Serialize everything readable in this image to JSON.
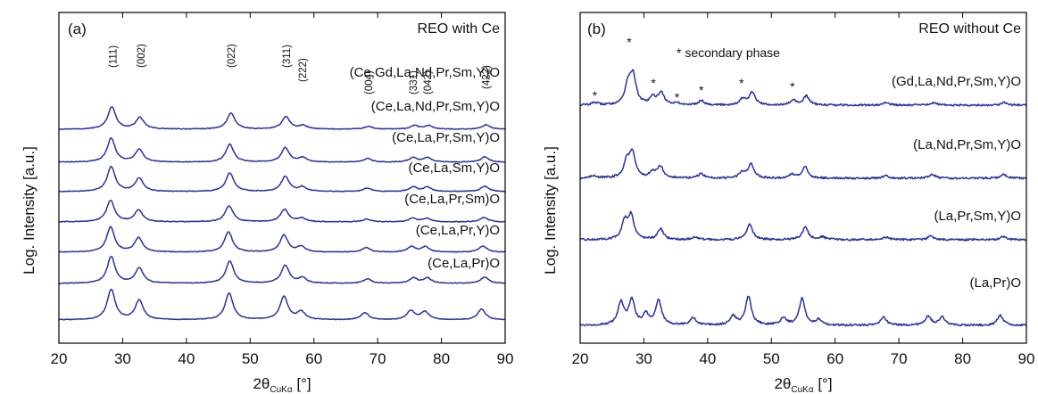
{
  "chart_data": [
    {
      "type": "line",
      "panel_label": "(a)",
      "title": "REO with Ce",
      "xlabel": "2θ",
      "xlabel_sub": "CuKα",
      "xlabel_unit": " [°]",
      "ylabel": "Log. Intensity [a.u.]",
      "xlim": [
        20,
        90
      ],
      "x_ticks": [
        20,
        30,
        40,
        50,
        60,
        70,
        80,
        90
      ],
      "grid": false,
      "peak_labels": [
        {
          "text": "(111)",
          "x": 28.5
        },
        {
          "text": "(002)",
          "x": 32.9
        },
        {
          "text": "(022)",
          "x": 47.0
        },
        {
          "text": "(311)",
          "x": 55.7
        },
        {
          "text": "(222)",
          "x": 58.2
        },
        {
          "text": "(004)",
          "x": 68.6
        },
        {
          "text": "(331)",
          "x": 75.6
        },
        {
          "text": "(042)",
          "x": 77.8
        },
        {
          "text": "(422)",
          "x": 87.0
        }
      ],
      "series": [
        {
          "name": "(Ce,Gd,La,Nd,Pr,Sm,Y)O",
          "peaks": [
            [
              28.3,
              25
            ],
            [
              32.7,
              13
            ],
            [
              47.0,
              18
            ],
            [
              55.6,
              14
            ],
            [
              58.3,
              4
            ],
            [
              68.6,
              3
            ],
            [
              75.8,
              4
            ],
            [
              78.0,
              4
            ],
            [
              87.0,
              5
            ]
          ]
        },
        {
          "name": "(Ce,La,Nd,Pr,Sm,Y)O",
          "peaks": [
            [
              28.2,
              27
            ],
            [
              32.6,
              14
            ],
            [
              46.8,
              20
            ],
            [
              55.5,
              16
            ],
            [
              58.2,
              5
            ],
            [
              68.4,
              4
            ],
            [
              75.6,
              5
            ],
            [
              77.8,
              5
            ],
            [
              86.8,
              6
            ]
          ]
        },
        {
          "name": "(Ce,La,Pr,Sm,Y)O",
          "peaks": [
            [
              28.2,
              28
            ],
            [
              32.6,
              15
            ],
            [
              46.8,
              21
            ],
            [
              55.5,
              17
            ],
            [
              58.2,
              5
            ],
            [
              68.4,
              4
            ],
            [
              75.6,
              5
            ],
            [
              77.8,
              5
            ],
            [
              86.8,
              6
            ]
          ]
        },
        {
          "name": "(Ce,La,Sm,Y)O",
          "peaks": [
            [
              28.1,
              24
            ],
            [
              32.5,
              13
            ],
            [
              46.7,
              18
            ],
            [
              55.4,
              14
            ],
            [
              58.1,
              4
            ],
            [
              68.3,
              3
            ],
            [
              75.5,
              4
            ],
            [
              77.7,
              4
            ],
            [
              86.7,
              5
            ]
          ]
        },
        {
          "name": "(Ce,La,Pr,Sm)O",
          "peaks": [
            [
              28.1,
              28
            ],
            [
              32.5,
              16
            ],
            [
              46.6,
              23
            ],
            [
              55.3,
              19
            ],
            [
              58.0,
              6
            ],
            [
              68.2,
              5
            ],
            [
              75.3,
              6
            ],
            [
              77.5,
              6
            ],
            [
              86.5,
              7
            ]
          ]
        },
        {
          "name": "(Ce,La,Pr,Y)O",
          "peaks": [
            [
              28.2,
              30
            ],
            [
              32.6,
              17
            ],
            [
              46.8,
              25
            ],
            [
              55.5,
              20
            ],
            [
              58.2,
              6
            ],
            [
              68.4,
              5
            ],
            [
              75.6,
              6
            ],
            [
              77.8,
              6
            ],
            [
              86.8,
              7
            ]
          ]
        },
        {
          "name": "(Ce,La,Pr)O",
          "peaks": [
            [
              28.2,
              34
            ],
            [
              32.6,
              22
            ],
            [
              46.7,
              30
            ],
            [
              55.3,
              26
            ],
            [
              58.0,
              9
            ],
            [
              68.0,
              8
            ],
            [
              75.2,
              10
            ],
            [
              77.4,
              9
            ],
            [
              86.3,
              12
            ]
          ]
        }
      ]
    },
    {
      "type": "line",
      "panel_label": "(b)",
      "title": "REO without Ce",
      "note": "* secondary phase",
      "xlabel": "2θ",
      "xlabel_sub": "CuKα",
      "xlabel_unit": " [°]",
      "ylabel": "Log. Intensity [a.u.]",
      "xlim": [
        20,
        90
      ],
      "x_ticks": [
        20,
        30,
        40,
        50,
        60,
        70,
        80,
        90
      ],
      "grid": false,
      "secondary_phase_marks": [
        22.3,
        27.7,
        31.5,
        35.2,
        39.0,
        45.3,
        53.3
      ],
      "series": [
        {
          "name": "(Gd,La,Nd,Pr,Sm,Y)O",
          "peaks": [
            [
              22.3,
              3
            ],
            [
              27.5,
              22
            ],
            [
              28.3,
              32
            ],
            [
              31.4,
              8
            ],
            [
              32.7,
              14
            ],
            [
              35.2,
              2
            ],
            [
              39.0,
              5
            ],
            [
              45.5,
              7
            ],
            [
              47.0,
              14
            ],
            [
              53.5,
              5
            ],
            [
              55.5,
              10
            ],
            [
              68.0,
              3
            ],
            [
              75.5,
              3
            ],
            [
              86.5,
              3
            ]
          ]
        },
        {
          "name": "(La,Nd,Pr,Sm,Y)O",
          "peaks": [
            [
              22.2,
              3
            ],
            [
              27.3,
              18
            ],
            [
              28.2,
              28
            ],
            [
              31.4,
              6
            ],
            [
              32.6,
              13
            ],
            [
              39.0,
              5
            ],
            [
              45.4,
              6
            ],
            [
              46.8,
              16
            ],
            [
              53.3,
              4
            ],
            [
              55.3,
              12
            ],
            [
              68.0,
              3
            ],
            [
              75.2,
              4
            ],
            [
              86.5,
              4
            ]
          ]
        },
        {
          "name": "(La,Pr,Sm,Y)O",
          "peaks": [
            [
              27.0,
              20
            ],
            [
              28.0,
              26
            ],
            [
              32.6,
              12
            ],
            [
              38.0,
              3
            ],
            [
              46.6,
              18
            ],
            [
              55.3,
              14
            ],
            [
              58.0,
              3
            ],
            [
              68.0,
              3
            ],
            [
              75.0,
              4
            ],
            [
              86.5,
              4
            ]
          ]
        },
        {
          "name": "(La,Pr)O",
          "peaks": [
            [
              26.4,
              25
            ],
            [
              28.1,
              28
            ],
            [
              30.3,
              12
            ],
            [
              32.3,
              28
            ],
            [
              37.7,
              8
            ],
            [
              44.0,
              10
            ],
            [
              46.4,
              32
            ],
            [
              51.9,
              8
            ],
            [
              54.8,
              30
            ],
            [
              57.4,
              6
            ],
            [
              67.6,
              9
            ],
            [
              74.6,
              10
            ],
            [
              76.8,
              9
            ],
            [
              85.9,
              11
            ]
          ]
        }
      ]
    }
  ]
}
